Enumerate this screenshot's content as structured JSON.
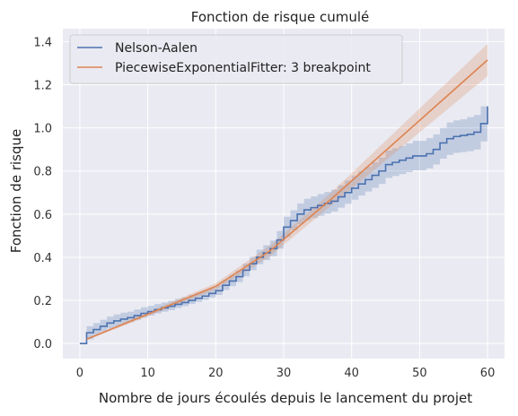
{
  "chart_data": {
    "type": "line",
    "title": "Fonction de risque cumulé",
    "xlabel": "Nombre de jours écoulés depuis le lancement du projet",
    "ylabel": "Fonction de risque",
    "xlim": [
      -2.5,
      62.5
    ],
    "ylim": [
      -0.07,
      1.46
    ],
    "xticks": [
      0,
      10,
      20,
      30,
      40,
      50,
      60
    ],
    "yticks": [
      0.0,
      0.2,
      0.4,
      0.6,
      0.8,
      1.0,
      1.2,
      1.4
    ],
    "xtick_labels": [
      "0",
      "10",
      "20",
      "30",
      "40",
      "50",
      "60"
    ],
    "ytick_labels": [
      "0.0",
      "0.2",
      "0.4",
      "0.6",
      "0.8",
      "1.0",
      "1.2",
      "1.4"
    ],
    "grid": true,
    "legend_position": "top-left",
    "colors": {
      "background": "#eaeaf2",
      "grid": "#ffffff",
      "nelson": "#4c72b0",
      "piecewise": "#dd8452"
    },
    "series": [
      {
        "name": "Nelson-Aalen",
        "style": "step",
        "x": [
          0,
          1,
          2,
          3,
          4,
          5,
          6,
          7,
          8,
          9,
          10,
          11,
          12,
          13,
          14,
          15,
          16,
          17,
          18,
          19,
          20,
          21,
          22,
          23,
          24,
          25,
          26,
          27,
          28,
          29,
          30,
          31,
          32,
          33,
          34,
          35,
          36,
          37,
          38,
          39,
          40,
          41,
          42,
          43,
          44,
          45,
          46,
          47,
          48,
          49,
          50,
          51,
          52,
          53,
          54,
          55,
          56,
          57,
          58,
          59,
          60
        ],
        "y": [
          0.0,
          0.05,
          0.065,
          0.08,
          0.095,
          0.105,
          0.113,
          0.12,
          0.13,
          0.14,
          0.148,
          0.157,
          0.165,
          0.173,
          0.182,
          0.19,
          0.2,
          0.21,
          0.22,
          0.232,
          0.245,
          0.27,
          0.29,
          0.31,
          0.34,
          0.37,
          0.4,
          0.42,
          0.44,
          0.48,
          0.54,
          0.57,
          0.6,
          0.62,
          0.63,
          0.64,
          0.65,
          0.66,
          0.68,
          0.7,
          0.72,
          0.74,
          0.76,
          0.78,
          0.8,
          0.83,
          0.84,
          0.85,
          0.86,
          0.87,
          0.87,
          0.88,
          0.9,
          0.93,
          0.95,
          0.96,
          0.965,
          0.97,
          0.98,
          1.02,
          1.1
        ],
        "ci_lower": [
          0.0,
          0.02,
          0.04,
          0.055,
          0.07,
          0.08,
          0.09,
          0.1,
          0.11,
          0.12,
          0.13,
          0.14,
          0.148,
          0.155,
          0.165,
          0.173,
          0.183,
          0.193,
          0.202,
          0.213,
          0.225,
          0.248,
          0.266,
          0.285,
          0.312,
          0.34,
          0.368,
          0.387,
          0.405,
          0.44,
          0.495,
          0.525,
          0.553,
          0.572,
          0.582,
          0.592,
          0.602,
          0.612,
          0.63,
          0.648,
          0.667,
          0.686,
          0.705,
          0.722,
          0.74,
          0.768,
          0.777,
          0.786,
          0.795,
          0.803,
          0.803,
          0.812,
          0.83,
          0.857,
          0.875,
          0.884,
          0.888,
          0.892,
          0.9,
          0.937,
          1.0
        ],
        "ci_upper": [
          0.0,
          0.08,
          0.095,
          0.11,
          0.125,
          0.135,
          0.143,
          0.148,
          0.158,
          0.168,
          0.175,
          0.183,
          0.19,
          0.198,
          0.207,
          0.215,
          0.225,
          0.235,
          0.245,
          0.257,
          0.27,
          0.295,
          0.316,
          0.338,
          0.37,
          0.402,
          0.435,
          0.456,
          0.477,
          0.522,
          0.588,
          0.618,
          0.65,
          0.671,
          0.682,
          0.693,
          0.703,
          0.713,
          0.734,
          0.756,
          0.777,
          0.8,
          0.82,
          0.84,
          0.862,
          0.895,
          0.905,
          0.916,
          0.928,
          0.94,
          0.94,
          0.952,
          0.97,
          1.0,
          1.025,
          1.035,
          1.04,
          1.05,
          1.06,
          1.1,
          1.14
        ]
      },
      {
        "name": "PiecewiseExponentialFitter: 3 breakpoint",
        "style": "line",
        "x": [
          1,
          20,
          28,
          37,
          60
        ],
        "y": [
          0.02,
          0.265,
          0.43,
          0.67,
          1.315
        ],
        "ci_lower": [
          0.015,
          0.25,
          0.405,
          0.64,
          1.24
        ],
        "ci_upper": [
          0.025,
          0.28,
          0.455,
          0.7,
          1.39
        ]
      }
    ]
  }
}
